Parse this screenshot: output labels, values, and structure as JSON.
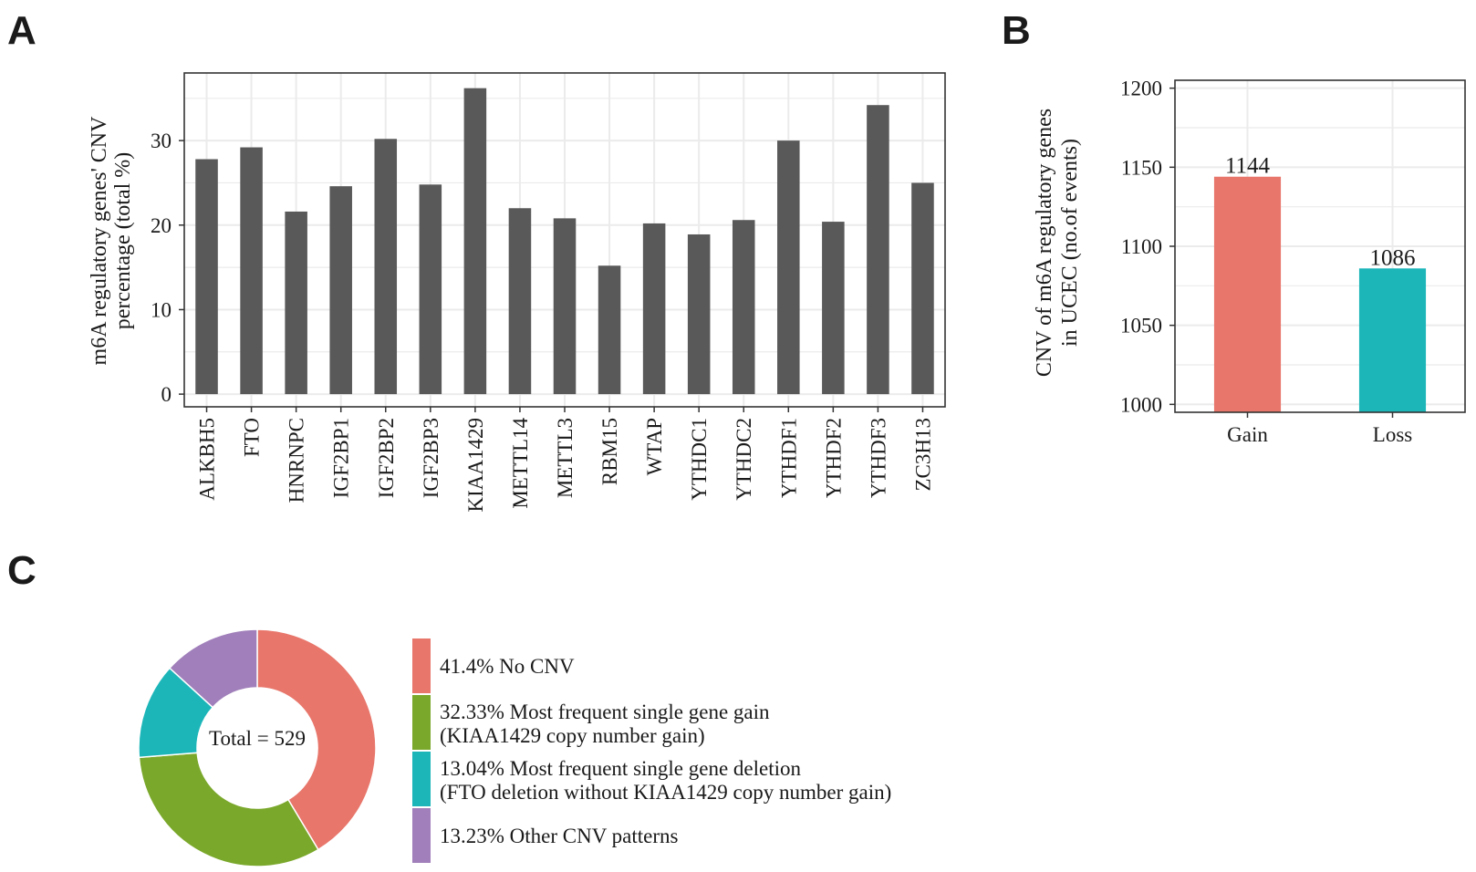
{
  "panels": {
    "a": "A",
    "b": "B",
    "c": "C"
  },
  "colors": {
    "panel_a_bar": "#595959",
    "grid": "#ebebeb",
    "gain": "#e8766b",
    "loss": "#1cb6b9",
    "no_cnv": "#e8766b",
    "gain_slice": "#7aa82b",
    "deletion_slice": "#1cb6b9",
    "other_slice": "#a07fba"
  },
  "chart_data": [
    {
      "type": "bar",
      "panel": "A",
      "ylabel_line1": "m6A regulatory genes' CNV",
      "ylabel_line2": "percentage (total %)",
      "xlabel": "",
      "ylim": [
        -1.5,
        38
      ],
      "yticks": [
        0,
        10,
        20,
        30
      ],
      "grid": true,
      "categories": [
        "ALKBH5",
        "FTO",
        "HNRNPC",
        "IGF2BP1",
        "IGF2BP2",
        "IGF2BP3",
        "KIAA1429",
        "METTL14",
        "METTL3",
        "RBM15",
        "WTAP",
        "YTHDC1",
        "YTHDC2",
        "YTHDF1",
        "YTHDF2",
        "YTHDF3",
        "ZC3H13"
      ],
      "values": [
        27.8,
        29.2,
        21.6,
        24.6,
        30.2,
        24.8,
        36.2,
        22.0,
        20.8,
        15.2,
        20.2,
        18.9,
        20.6,
        30.0,
        20.4,
        34.2,
        25.0
      ]
    },
    {
      "type": "bar",
      "panel": "B",
      "ylabel_line1": "CNV of m6A regulatory genes",
      "ylabel_line2": "in UCEC (no.of events)",
      "xlabel": "",
      "ylim": [
        995,
        1205
      ],
      "yticks": [
        1000,
        1050,
        1100,
        1150,
        1200
      ],
      "grid": true,
      "categories": [
        "Gain",
        "Loss"
      ],
      "values": [
        1144,
        1086
      ],
      "data_labels": [
        "1144",
        "1086"
      ]
    },
    {
      "type": "pie",
      "panel": "C",
      "center_label": "Total = 529",
      "slices": [
        {
          "value": 41.4,
          "label_line1": "41.4% No CNV",
          "label_line2": ""
        },
        {
          "value": 32.33,
          "label_line1": "32.33% Most frequent single gene gain",
          "label_line2": "(KIAA1429 copy number gain)"
        },
        {
          "value": 13.04,
          "label_line1": "13.04% Most frequent single gene deletion",
          "label_line2": "(FTO deletion without KIAA1429 copy number gain)"
        },
        {
          "value": 13.23,
          "label_line1": "13.23% Other CNV patterns",
          "label_line2": ""
        }
      ]
    }
  ]
}
